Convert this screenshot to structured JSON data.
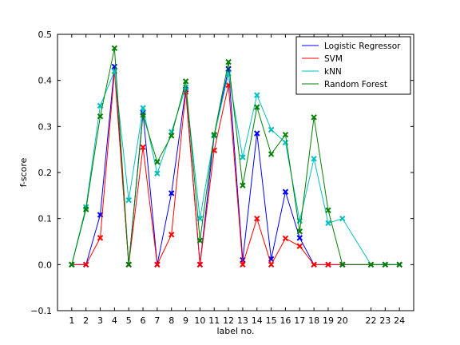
{
  "chart_data": {
    "type": "line",
    "xlabel": "label no.",
    "ylabel": "f-score",
    "xlim": [
      0,
      25
    ],
    "ylim": [
      -0.1,
      0.5
    ],
    "x_ticks": [
      1,
      2,
      3,
      4,
      5,
      6,
      7,
      8,
      9,
      10,
      11,
      12,
      13,
      14,
      15,
      16,
      17,
      18,
      19,
      20,
      22,
      23,
      24
    ],
    "y_ticks": [
      -0.1,
      0.0,
      0.1,
      0.2,
      0.3,
      0.4,
      0.5
    ],
    "y_tick_labels": [
      "−0.1",
      "0.0",
      "0.1",
      "0.2",
      "0.3",
      "0.4",
      "0.5"
    ],
    "grid": false,
    "legend_position": "top-right",
    "x": [
      1,
      2,
      3,
      4,
      5,
      6,
      7,
      8,
      9,
      10,
      11,
      12,
      13,
      14,
      15,
      16,
      17,
      18,
      19,
      20,
      22,
      23,
      24
    ],
    "series": [
      {
        "name": "Logistic Regressor",
        "color": "#0000ff",
        "values": [
          0.0,
          0.0,
          0.108,
          0.43,
          0.0,
          0.33,
          0.0,
          0.155,
          0.38,
          0.0,
          0.28,
          0.425,
          0.01,
          0.285,
          0.012,
          0.158,
          0.058,
          0.0,
          0.0,
          0.0,
          0.0,
          0.0,
          0.0
        ]
      },
      {
        "name": "SVM",
        "color": "#ff0000",
        "values": [
          0.0,
          0.0,
          0.058,
          0.42,
          0.0,
          0.255,
          0.0,
          0.065,
          0.375,
          0.0,
          0.248,
          0.39,
          0.0,
          0.1,
          0.0,
          0.057,
          0.04,
          0.0,
          0.0,
          0.0,
          0.0,
          0.0,
          0.0
        ]
      },
      {
        "name": "kNN",
        "color": "#00bfbf",
        "values": [
          0.0,
          0.125,
          0.345,
          0.42,
          0.14,
          0.34,
          0.198,
          0.288,
          0.385,
          0.1,
          0.28,
          0.415,
          0.233,
          0.368,
          0.293,
          0.265,
          0.095,
          0.23,
          0.09,
          0.1,
          0.0,
          0.0,
          0.0
        ]
      },
      {
        "name": "Random Forest",
        "color": "#008000",
        "values": [
          0.0,
          0.12,
          0.322,
          0.47,
          0.0,
          0.325,
          0.223,
          0.28,
          0.398,
          0.052,
          0.282,
          0.44,
          0.172,
          0.342,
          0.24,
          0.282,
          0.072,
          0.32,
          0.118,
          0.0,
          0.0,
          0.0,
          0.0
        ]
      }
    ]
  }
}
